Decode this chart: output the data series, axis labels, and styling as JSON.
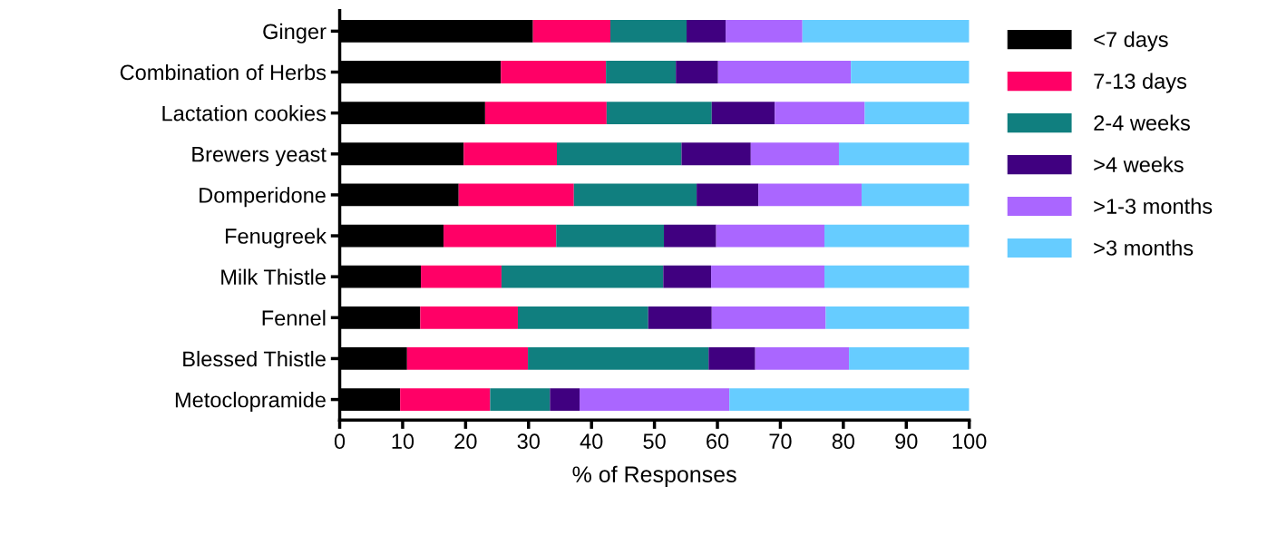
{
  "chart_data": {
    "type": "bar",
    "orientation": "horizontal",
    "stacked": true,
    "xlabel": "% of Responses",
    "categories": [
      "Ginger",
      "Combination of Herbs",
      "Lactation cookies",
      "Brewers yeast",
      "Domperidone",
      "Fenugreek",
      "Milk Thistle",
      "Fennel",
      "Blessed Thistle",
      "Metoclopramide"
    ],
    "series": [
      {
        "name": "<7 days",
        "color": "#000000",
        "values": [
          30.7,
          25.6,
          23.1,
          19.7,
          18.9,
          16.5,
          12.9,
          12.8,
          10.7,
          9.6
        ]
      },
      {
        "name": "7-13 days",
        "color": "#ff0066",
        "values": [
          12.3,
          16.7,
          19.3,
          14.8,
          18.3,
          17.9,
          12.8,
          15.5,
          19.2,
          14.3
        ]
      },
      {
        "name": "2-4 weeks",
        "color": "#107f7f",
        "values": [
          12.1,
          11.1,
          16.7,
          19.8,
          19.5,
          17.1,
          25.7,
          20.7,
          28.7,
          9.5
        ]
      },
      {
        "name": ">4 weeks",
        "color": "#400080",
        "values": [
          6.2,
          6.7,
          10.0,
          11.0,
          9.8,
          8.3,
          7.6,
          10.1,
          7.4,
          4.7
        ]
      },
      {
        "name": ">1-3 months",
        "color": "#aa66ff",
        "values": [
          12.2,
          21.1,
          14.3,
          14.0,
          16.4,
          17.2,
          18.0,
          18.1,
          14.9,
          23.8
        ]
      },
      {
        "name": ">3 months",
        "color": "#66ccff",
        "values": [
          26.5,
          18.8,
          16.6,
          20.7,
          17.1,
          23.0,
          23.0,
          22.8,
          19.1,
          38.1
        ]
      }
    ],
    "xlim": [
      0,
      100
    ],
    "xticks": [
      0,
      10,
      20,
      30,
      40,
      50,
      60,
      70,
      80,
      90,
      100
    ],
    "grid": false,
    "legend": "top right"
  }
}
